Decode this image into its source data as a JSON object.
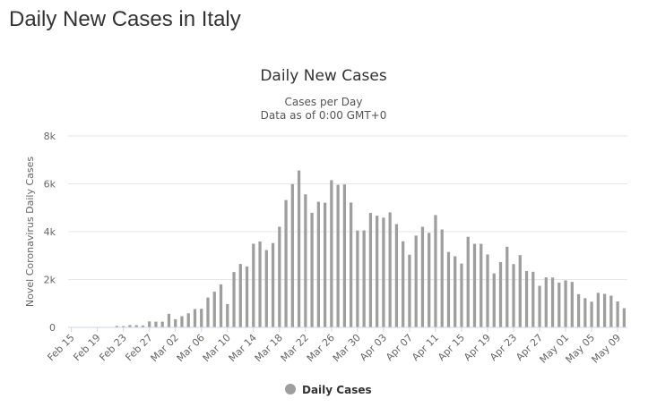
{
  "page": {
    "heading": "Daily New Cases in Italy"
  },
  "chart_data": {
    "type": "bar",
    "title": "Daily New Cases",
    "subtitle_line1": "Cases per Day",
    "subtitle_line2": "Data as of 0:00 GMT+0",
    "ylabel": "Novel Coronavirus Daily Cases",
    "xlabel": "",
    "ylim": [
      0,
      8000
    ],
    "y_ticks": [
      {
        "value": 0,
        "label": "0"
      },
      {
        "value": 2000,
        "label": "2k"
      },
      {
        "value": 4000,
        "label": "4k"
      },
      {
        "value": 6000,
        "label": "6k"
      },
      {
        "value": 8000,
        "label": "8k"
      }
    ],
    "grid": true,
    "legend_position": "bottom-center",
    "series": [
      {
        "name": "Daily Cases",
        "color": "#9e9e9e",
        "categories": [
          "Feb 15",
          "Feb 16",
          "Feb 17",
          "Feb 18",
          "Feb 19",
          "Feb 20",
          "Feb 21",
          "Feb 22",
          "Feb 23",
          "Feb 24",
          "Feb 25",
          "Feb 26",
          "Feb 27",
          "Feb 28",
          "Feb 29",
          "Mar 01",
          "Mar 02",
          "Mar 03",
          "Mar 04",
          "Mar 05",
          "Mar 06",
          "Mar 07",
          "Mar 08",
          "Mar 09",
          "Mar 10",
          "Mar 11",
          "Mar 12",
          "Mar 13",
          "Mar 14",
          "Mar 15",
          "Mar 16",
          "Mar 17",
          "Mar 18",
          "Mar 19",
          "Mar 20",
          "Mar 21",
          "Mar 22",
          "Mar 23",
          "Mar 24",
          "Mar 25",
          "Mar 26",
          "Mar 27",
          "Mar 28",
          "Mar 29",
          "Mar 30",
          "Mar 31",
          "Apr 01",
          "Apr 02",
          "Apr 03",
          "Apr 04",
          "Apr 05",
          "Apr 06",
          "Apr 07",
          "Apr 08",
          "Apr 09",
          "Apr 10",
          "Apr 11",
          "Apr 12",
          "Apr 13",
          "Apr 14",
          "Apr 15",
          "Apr 16",
          "Apr 17",
          "Apr 18",
          "Apr 19",
          "Apr 20",
          "Apr 21",
          "Apr 22",
          "Apr 23",
          "Apr 24",
          "Apr 25",
          "Apr 26",
          "Apr 27",
          "Apr 28",
          "Apr 29",
          "Apr 30",
          "May 01",
          "May 02",
          "May 03",
          "May 04",
          "May 05",
          "May 06",
          "May 07",
          "May 08",
          "May 09",
          "May 10"
        ],
        "values": [
          0,
          0,
          0,
          0,
          0,
          0,
          14,
          62,
          53,
          97,
          93,
          78,
          250,
          238,
          240,
          566,
          342,
          466,
          587,
          769,
          778,
          1247,
          1492,
          1797,
          977,
          2313,
          2651,
          2547,
          3497,
          3590,
          3233,
          3526,
          4207,
          5322,
          5986,
          6557,
          5560,
          4789,
          5249,
          5210,
          6153,
          5959,
          5974,
          5217,
          4050,
          4053,
          4782,
          4668,
          4585,
          4805,
          4316,
          3599,
          3039,
          3836,
          4204,
          3951,
          4694,
          4092,
          3153,
          2972,
          2667,
          3786,
          3493,
          3491,
          3047,
          2256,
          2729,
          3370,
          2646,
          3021,
          2357,
          2324,
          1739,
          2091,
          2086,
          1872,
          1965,
          1900,
          1389,
          1221,
          1075,
          1444,
          1401,
          1327,
          1083,
          802
        ]
      }
    ],
    "x_tick_labels": [
      "Feb 15",
      "Feb 19",
      "Feb 23",
      "Feb 27",
      "Mar 02",
      "Mar 06",
      "Mar 10",
      "Mar 14",
      "Mar 18",
      "Mar 22",
      "Mar 26",
      "Mar 30",
      "Apr 03",
      "Apr 07",
      "Apr 11",
      "Apr 15",
      "Apr 19",
      "Apr 23",
      "Apr 27",
      "May 01",
      "May 05",
      "May 09"
    ],
    "x_tick_every": 4
  }
}
